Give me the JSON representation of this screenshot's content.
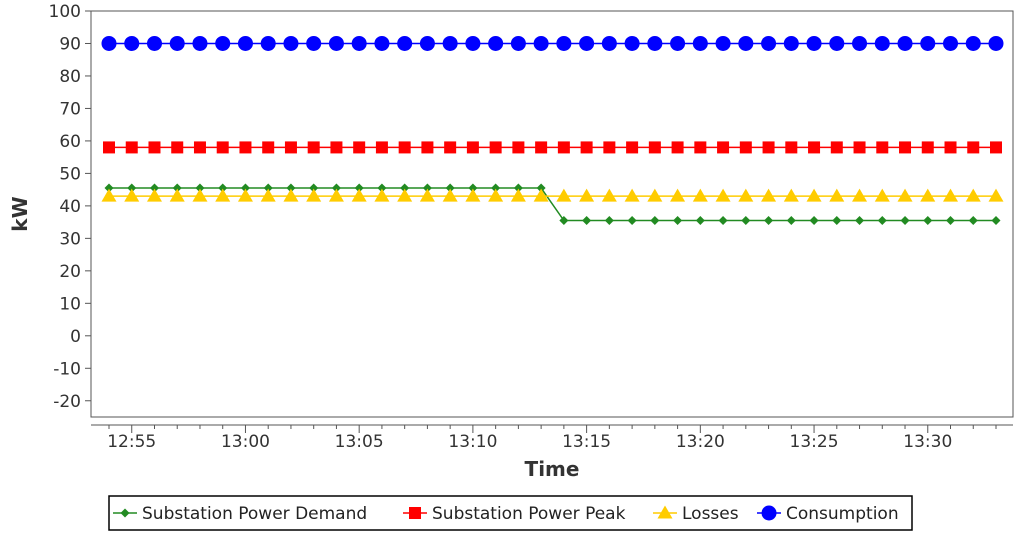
{
  "chart_data": {
    "type": "line",
    "title": "",
    "xlabel": "Time",
    "ylabel": "kW",
    "ylim": [
      -25,
      100
    ],
    "yticks": [
      "100",
      "90",
      "80",
      "70",
      "60",
      "50",
      "40",
      "30",
      "20",
      "10",
      "0",
      "-10",
      "-20"
    ],
    "x_tick_labels": [
      "12:55",
      "13:00",
      "13:05",
      "13:10",
      "13:15",
      "13:20",
      "13:25",
      "13:30"
    ],
    "x_start": "12:54",
    "x_end": "13:33",
    "x_step_minutes": 1,
    "grid": false,
    "legend_position": "bottom",
    "series": [
      {
        "name": "Substation Power Demand",
        "color": "#228B22",
        "marker": "diamond",
        "values": [
          45.5,
          45.5,
          45.5,
          45.5,
          45.5,
          45.5,
          45.5,
          45.5,
          45.5,
          45.5,
          45.5,
          45.5,
          45.5,
          45.5,
          45.5,
          45.5,
          45.5,
          45.5,
          45.5,
          45.5,
          35.5,
          35.5,
          35.5,
          35.5,
          35.5,
          35.5,
          35.5,
          35.5,
          35.5,
          35.5,
          35.5,
          35.5,
          35.5,
          35.5,
          35.5,
          35.5,
          35.5,
          35.5,
          35.5,
          35.5
        ]
      },
      {
        "name": "Substation Power Peak",
        "color": "#FF0000",
        "marker": "square",
        "values": [
          58,
          58,
          58,
          58,
          58,
          58,
          58,
          58,
          58,
          58,
          58,
          58,
          58,
          58,
          58,
          58,
          58,
          58,
          58,
          58,
          58,
          58,
          58,
          58,
          58,
          58,
          58,
          58,
          58,
          58,
          58,
          58,
          58,
          58,
          58,
          58,
          58,
          58,
          58,
          58
        ]
      },
      {
        "name": "Losses",
        "color": "#FFCC00",
        "marker": "triangle",
        "values": [
          43,
          43,
          43,
          43,
          43,
          43,
          43,
          43,
          43,
          43,
          43,
          43,
          43,
          43,
          43,
          43,
          43,
          43,
          43,
          43,
          43,
          43,
          43,
          43,
          43,
          43,
          43,
          43,
          43,
          43,
          43,
          43,
          43,
          43,
          43,
          43,
          43,
          43,
          43,
          43
        ]
      },
      {
        "name": "Consumption",
        "color": "#0000FF",
        "marker": "circle",
        "values": [
          90,
          90,
          90,
          90,
          90,
          90,
          90,
          90,
          90,
          90,
          90,
          90,
          90,
          90,
          90,
          90,
          90,
          90,
          90,
          90,
          90,
          90,
          90,
          90,
          90,
          90,
          90,
          90,
          90,
          90,
          90,
          90,
          90,
          90,
          90,
          90,
          90,
          90,
          90,
          90
        ]
      }
    ]
  }
}
